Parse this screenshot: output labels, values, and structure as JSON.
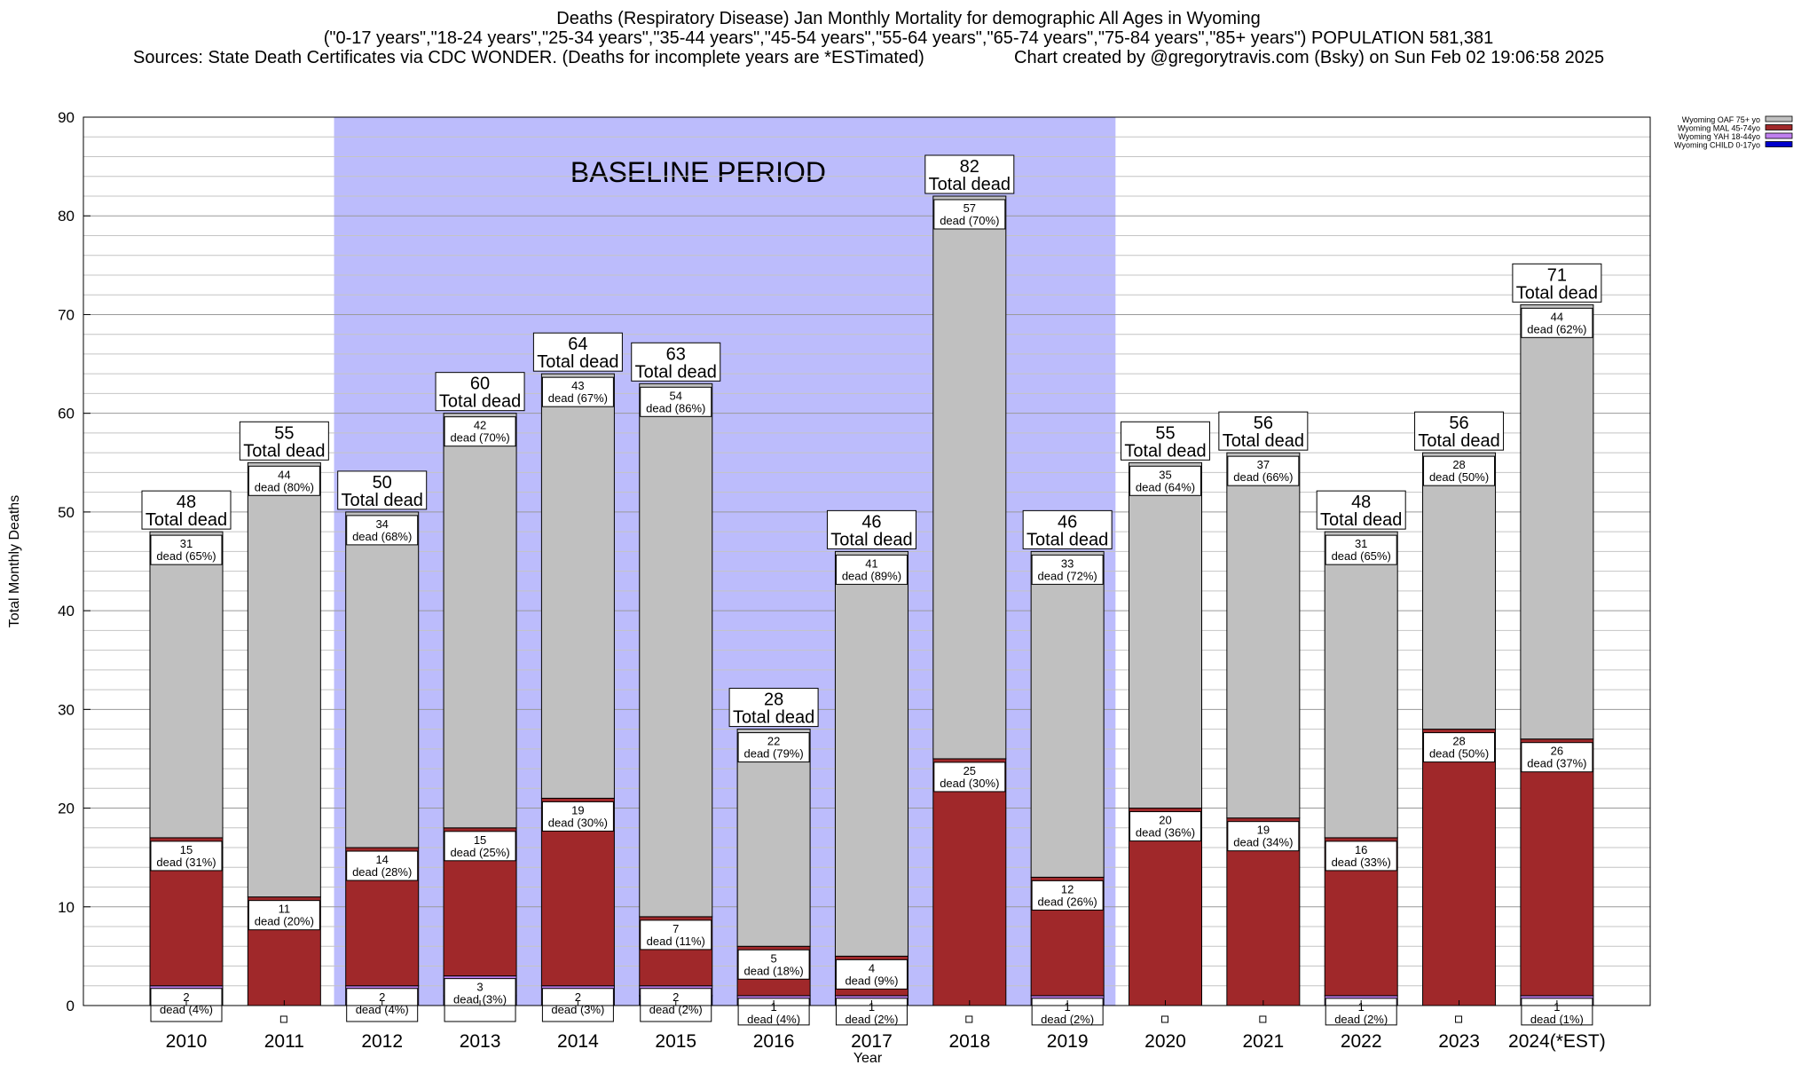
{
  "header": {
    "title": "Deaths (Respiratory Disease) Jan Monthly Mortality for demographic All Ages in Wyoming",
    "subtitle": "(\"0-17 years\",\"18-24 years\",\"25-34 years\",\"35-44 years\",\"45-54 years\",\"55-64 years\",\"65-74 years\",\"75-84 years\",\"85+ years\") POPULATION 581,381",
    "sources": "Sources: State Death Certificates via CDC WONDER. (Deaths for incomplete years are *ESTimated)",
    "credit": "Chart created by @gregorytravis.com (Bsky) on Sun Feb 02 19:06:58 2025"
  },
  "chart_data": {
    "type": "bar",
    "stacked": true,
    "title": "Deaths (Respiratory Disease) Jan Monthly Mortality for demographic All Ages in Wyoming",
    "xlabel": "Year",
    "ylabel": "Total Monthly Deaths",
    "ylim": [
      0,
      90
    ],
    "yticks": [
      0,
      10,
      20,
      30,
      40,
      50,
      60,
      70,
      80,
      90
    ],
    "grid": true,
    "legend_position": "top-right",
    "categories": [
      "2010",
      "2011",
      "2012",
      "2013",
      "2014",
      "2015",
      "2016",
      "2017",
      "2018",
      "2019",
      "2020",
      "2021",
      "2022",
      "2023",
      "2024(*EST)"
    ],
    "series": [
      {
        "name": "Wyoming CHILD 0-17yo",
        "color": "#0000cc",
        "values": [
          0,
          0,
          0,
          1,
          0,
          1,
          0,
          0,
          0,
          0,
          0,
          0,
          0,
          0,
          0
        ]
      },
      {
        "name": "Wyoming YAH 18-44yo",
        "color": "#c080f0",
        "values": [
          2,
          0,
          2,
          2,
          2,
          1,
          1,
          1,
          0,
          1,
          0,
          0,
          1,
          0,
          1
        ]
      },
      {
        "name": "Wyoming MAL 45-74yo",
        "color": "#a0282a",
        "values": [
          15,
          11,
          14,
          15,
          19,
          7,
          5,
          4,
          25,
          12,
          20,
          19,
          16,
          28,
          26
        ]
      },
      {
        "name": "Wyoming OAF 75+ yo",
        "color": "#c0c0c0",
        "values": [
          31,
          44,
          34,
          42,
          43,
          54,
          22,
          41,
          57,
          33,
          35,
          37,
          31,
          28,
          44
        ]
      }
    ],
    "totals": [
      48,
      55,
      50,
      60,
      64,
      63,
      28,
      46,
      82,
      46,
      55,
      56,
      48,
      56,
      71
    ],
    "total_suffix": "Total dead",
    "segment_labels": {
      "oaf": [
        "dead (65%)",
        "dead (80%)",
        "dead (68%)",
        "dead (70%)",
        "dead (67%)",
        "dead (86%)",
        "dead (79%)",
        "dead (89%)",
        "dead (70%)",
        "dead (72%)",
        "dead (64%)",
        "dead (66%)",
        "dead (65%)",
        "dead (50%)",
        "dead (62%)"
      ],
      "mal": [
        "dead (31%)",
        "dead (20%)",
        "dead (28%)",
        "dead (25%)",
        "dead (30%)",
        "dead (11%)",
        "dead (18%)",
        "dead (9%)",
        "dead (30%)",
        "dead (26%)",
        "dead (36%)",
        "dead (34%)",
        "dead (33%)",
        "dead (50%)",
        "dead (37%)"
      ],
      "young": [
        "dead (4%)",
        "",
        "dead (4%)",
        "dead (3%)",
        "dead (3%)",
        "dead (2%)",
        "dead (4%)",
        "dead (2%)",
        "",
        "dead (2%)",
        "",
        "",
        "dead (2%)",
        "",
        "dead (1%)"
      ]
    },
    "baseline_period": {
      "label": "BASELINE PERIOD",
      "from": "2012",
      "to": "2019",
      "color": "#bcbcfc"
    }
  }
}
